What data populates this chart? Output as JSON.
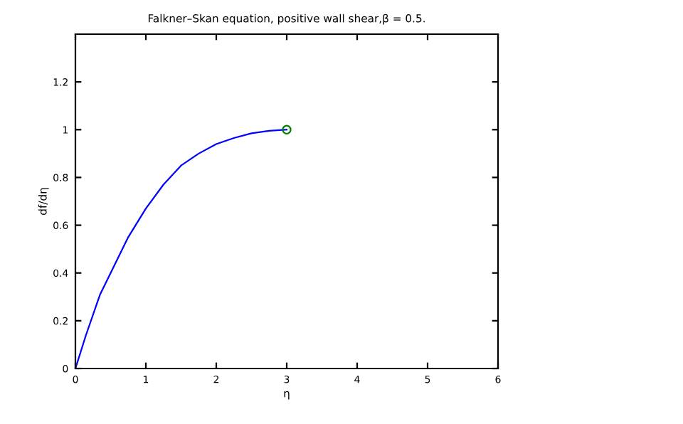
{
  "chart_data": {
    "type": "line",
    "title": "Falkner–Skan equation, positive wall shear,β = 0.5.",
    "xlabel": "η",
    "ylabel": "df/dη",
    "xlim": [
      0,
      6
    ],
    "ylim": [
      0,
      1.4
    ],
    "xticks": [
      0,
      1,
      2,
      3,
      4,
      5,
      6
    ],
    "yticks": [
      0,
      0.2,
      0.4,
      0.6,
      0.8,
      1,
      1.2
    ],
    "grid": false,
    "legend": false,
    "series": [
      {
        "color": "#0000ff",
        "marker": "none",
        "x": [
          0,
          0.15,
          0.35,
          0.5,
          0.75,
          1,
          1.25,
          1.5,
          1.75,
          2,
          2.25,
          2.5,
          2.75,
          3
        ],
        "values": [
          0,
          0.14,
          0.31,
          0.4,
          0.55,
          0.67,
          0.77,
          0.85,
          0.9,
          0.94,
          0.965,
          0.985,
          0.995,
          1
        ]
      },
      {
        "type": "scatter",
        "color": "#008000",
        "marker": "circle",
        "x": [
          3
        ],
        "values": [
          1
        ]
      }
    ]
  }
}
